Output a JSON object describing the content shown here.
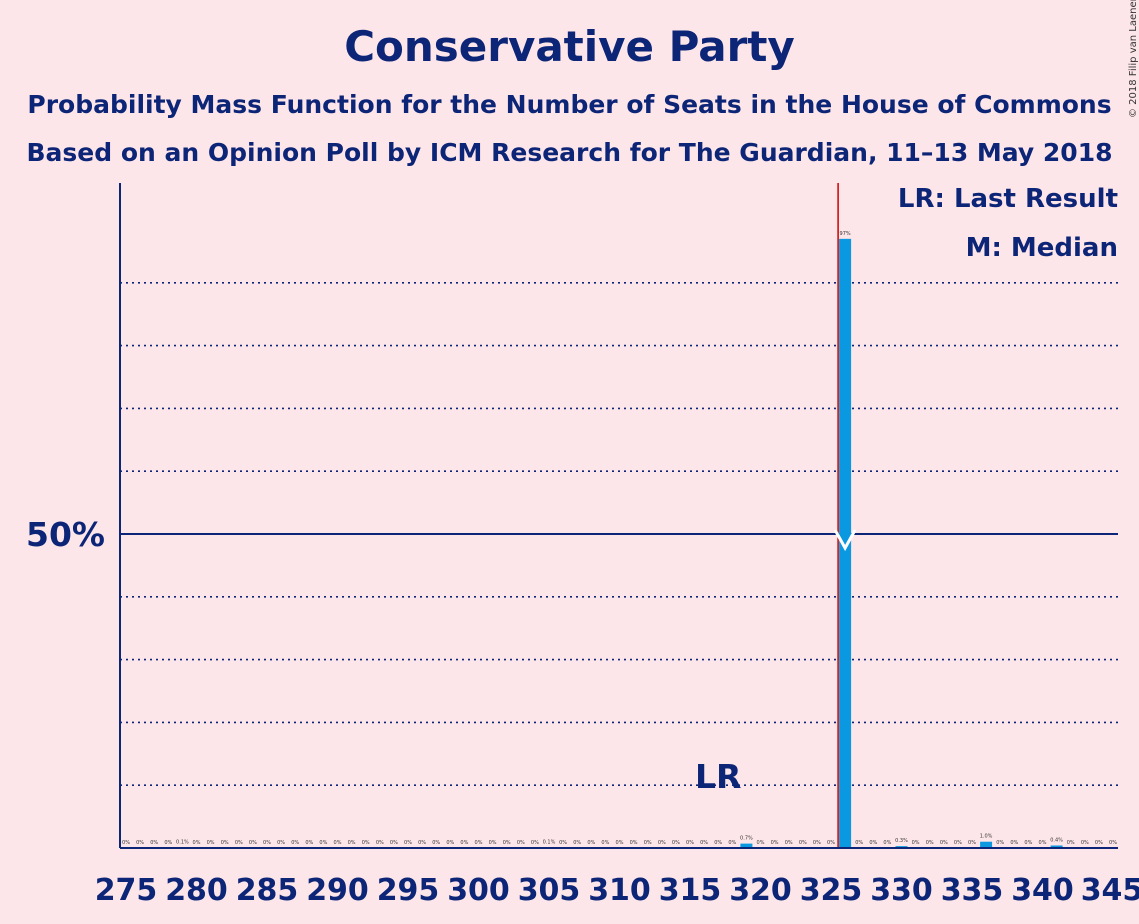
{
  "title": "Conservative Party",
  "subtitle1": "Probability Mass Function for the Number of Seats in the House of Commons",
  "subtitle2": "Based on an Opinion Poll by ICM Research for The Guardian, 11–13 May 2018",
  "copyright": "© 2018 Filip van Laenen",
  "legend": {
    "lr": "LR: Last Result",
    "m": "M: Median"
  },
  "colors": {
    "background": "#fde6e9",
    "text": "#0c2577",
    "bar": "#0a98e0",
    "last_result_line": "#cc0000",
    "median_marker": "#ffffff"
  },
  "chart_data": {
    "type": "bar",
    "x_range": [
      275,
      345
    ],
    "x_ticks": [
      275,
      280,
      285,
      290,
      295,
      300,
      305,
      310,
      315,
      320,
      325,
      330,
      335,
      340,
      345
    ],
    "y_range": [
      0,
      100
    ],
    "y_tick_label": "50%",
    "y_tick_value": 50,
    "gridlines": [
      10,
      20,
      30,
      40,
      60,
      70,
      80,
      90
    ],
    "last_result": {
      "seat": 317,
      "label": "LR"
    },
    "majority_line_seat": 326,
    "median": {
      "seat": 326,
      "value": 50
    },
    "bars": [
      {
        "seat": 275,
        "value": 0,
        "label": "0%"
      },
      {
        "seat": 276,
        "value": 0,
        "label": "0%"
      },
      {
        "seat": 277,
        "value": 0,
        "label": "0%"
      },
      {
        "seat": 278,
        "value": 0,
        "label": "0%"
      },
      {
        "seat": 279,
        "value": 0.1,
        "label": "0.1%"
      },
      {
        "seat": 280,
        "value": 0,
        "label": "0%"
      },
      {
        "seat": 281,
        "value": 0,
        "label": "0%"
      },
      {
        "seat": 282,
        "value": 0,
        "label": "0%"
      },
      {
        "seat": 283,
        "value": 0,
        "label": "0%"
      },
      {
        "seat": 284,
        "value": 0,
        "label": "0%"
      },
      {
        "seat": 285,
        "value": 0,
        "label": "0%"
      },
      {
        "seat": 286,
        "value": 0,
        "label": "0%"
      },
      {
        "seat": 287,
        "value": 0,
        "label": "0%"
      },
      {
        "seat": 288,
        "value": 0,
        "label": "0%"
      },
      {
        "seat": 289,
        "value": 0,
        "label": "0%"
      },
      {
        "seat": 290,
        "value": 0,
        "label": "0%"
      },
      {
        "seat": 291,
        "value": 0,
        "label": "0%"
      },
      {
        "seat": 292,
        "value": 0,
        "label": "0%"
      },
      {
        "seat": 293,
        "value": 0,
        "label": "0%"
      },
      {
        "seat": 294,
        "value": 0,
        "label": "0%"
      },
      {
        "seat": 295,
        "value": 0,
        "label": "0%"
      },
      {
        "seat": 296,
        "value": 0,
        "label": "0%"
      },
      {
        "seat": 297,
        "value": 0,
        "label": "0%"
      },
      {
        "seat": 298,
        "value": 0,
        "label": "0%"
      },
      {
        "seat": 299,
        "value": 0,
        "label": "0%"
      },
      {
        "seat": 300,
        "value": 0,
        "label": "0%"
      },
      {
        "seat": 301,
        "value": 0,
        "label": "0%"
      },
      {
        "seat": 302,
        "value": 0,
        "label": "0%"
      },
      {
        "seat": 303,
        "value": 0,
        "label": "0%"
      },
      {
        "seat": 304,
        "value": 0,
        "label": "0%"
      },
      {
        "seat": 305,
        "value": 0.1,
        "label": "0.1%"
      },
      {
        "seat": 306,
        "value": 0,
        "label": "0%"
      },
      {
        "seat": 307,
        "value": 0,
        "label": "0%"
      },
      {
        "seat": 308,
        "value": 0,
        "label": "0%"
      },
      {
        "seat": 309,
        "value": 0,
        "label": "0%"
      },
      {
        "seat": 310,
        "value": 0,
        "label": "0%"
      },
      {
        "seat": 311,
        "value": 0,
        "label": "0%"
      },
      {
        "seat": 312,
        "value": 0,
        "label": "0%"
      },
      {
        "seat": 313,
        "value": 0,
        "label": "0%"
      },
      {
        "seat": 314,
        "value": 0,
        "label": "0%"
      },
      {
        "seat": 315,
        "value": 0,
        "label": "0%"
      },
      {
        "seat": 316,
        "value": 0,
        "label": "0%"
      },
      {
        "seat": 317,
        "value": 0,
        "label": "0%"
      },
      {
        "seat": 318,
        "value": 0,
        "label": "0%"
      },
      {
        "seat": 319,
        "value": 0.7,
        "label": "0.7%"
      },
      {
        "seat": 320,
        "value": 0,
        "label": "0%"
      },
      {
        "seat": 321,
        "value": 0,
        "label": "0%"
      },
      {
        "seat": 322,
        "value": 0,
        "label": "0%"
      },
      {
        "seat": 323,
        "value": 0,
        "label": "0%"
      },
      {
        "seat": 324,
        "value": 0,
        "label": "0%"
      },
      {
        "seat": 325,
        "value": 0,
        "label": "0%"
      },
      {
        "seat": 326,
        "value": 97,
        "label": "97%"
      },
      {
        "seat": 327,
        "value": 0,
        "label": "0%"
      },
      {
        "seat": 328,
        "value": 0,
        "label": "0%"
      },
      {
        "seat": 329,
        "value": 0,
        "label": "0%"
      },
      {
        "seat": 330,
        "value": 0.3,
        "label": "0.3%"
      },
      {
        "seat": 331,
        "value": 0,
        "label": "0%"
      },
      {
        "seat": 332,
        "value": 0,
        "label": "0%"
      },
      {
        "seat": 333,
        "value": 0,
        "label": "0%"
      },
      {
        "seat": 334,
        "value": 0,
        "label": "0%"
      },
      {
        "seat": 335,
        "value": 0,
        "label": "0%"
      },
      {
        "seat": 336,
        "value": 1.0,
        "label": "1.0%"
      },
      {
        "seat": 337,
        "value": 0,
        "label": "0%"
      },
      {
        "seat": 338,
        "value": 0,
        "label": "0%"
      },
      {
        "seat": 339,
        "value": 0,
        "label": "0%"
      },
      {
        "seat": 340,
        "value": 0,
        "label": "0%"
      },
      {
        "seat": 341,
        "value": 0.4,
        "label": "0.4%"
      },
      {
        "seat": 342,
        "value": 0,
        "label": "0%"
      },
      {
        "seat": 343,
        "value": 0,
        "label": "0%"
      },
      {
        "seat": 344,
        "value": 0,
        "label": "0%"
      },
      {
        "seat": 345,
        "value": 0,
        "label": "0%"
      }
    ]
  }
}
